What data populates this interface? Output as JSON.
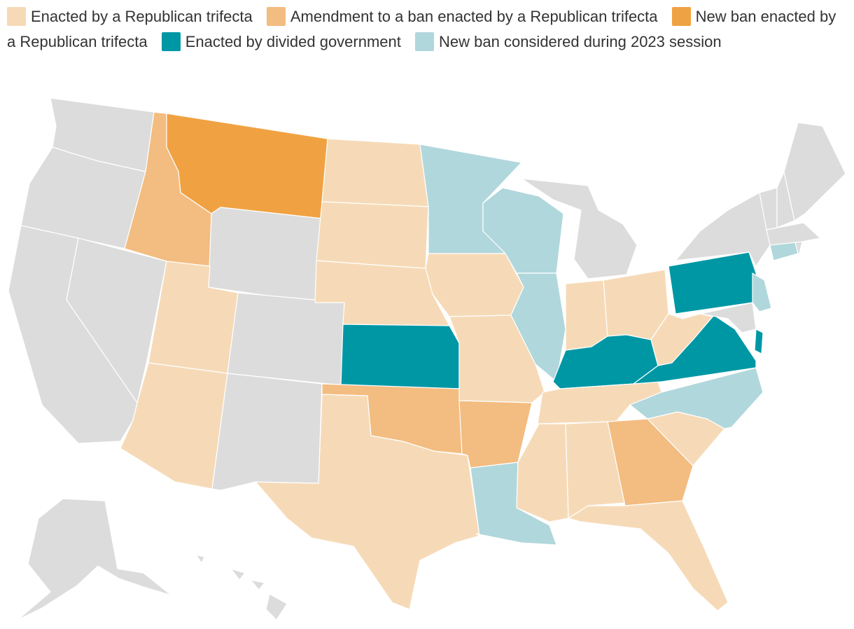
{
  "colors": {
    "enacted_trifecta": "#f6dab7",
    "amendment_trifecta": "#f3bc80",
    "new_ban_trifecta": "#f0a242",
    "divided_government": "#0097a5",
    "considered_2023": "#b0d7dc",
    "no_data": "#dcdcdc"
  },
  "legend": [
    {
      "key": "enacted_trifecta",
      "label": "Enacted by a Republican trifecta"
    },
    {
      "key": "amendment_trifecta",
      "label": "Amendment to a ban enacted by a Republican trifecta"
    },
    {
      "key": "new_ban_trifecta",
      "label": "New ban enacted by a Republican trifecta"
    },
    {
      "key": "divided_government",
      "label": "Enacted by divided government"
    },
    {
      "key": "considered_2023",
      "label": "New ban considered during 2023 session"
    }
  ],
  "states": {
    "WA": "no_data",
    "OR": "no_data",
    "CA": "no_data",
    "NV": "no_data",
    "ID": "amendment_trifecta",
    "MT": "new_ban_trifecta",
    "WY": "no_data",
    "UT": "enacted_trifecta",
    "AZ": "enacted_trifecta",
    "CO": "no_data",
    "NM": "no_data",
    "ND": "enacted_trifecta",
    "SD": "enacted_trifecta",
    "NE": "enacted_trifecta",
    "KS": "divided_government",
    "OK": "amendment_trifecta",
    "TX": "enacted_trifecta",
    "MN": "considered_2023",
    "IA": "enacted_trifecta",
    "MO": "enacted_trifecta",
    "AR": "amendment_trifecta",
    "LA": "considered_2023",
    "WI": "considered_2023",
    "IL": "considered_2023",
    "MI": "no_data",
    "IN": "enacted_trifecta",
    "OH": "enacted_trifecta",
    "KY": "divided_government",
    "TN": "enacted_trifecta",
    "MS": "enacted_trifecta",
    "AL": "enacted_trifecta",
    "GA": "amendment_trifecta",
    "FL": "enacted_trifecta",
    "SC": "enacted_trifecta",
    "NC": "considered_2023",
    "VA": "divided_government",
    "WV": "enacted_trifecta",
    "PA": "divided_government",
    "NY": "no_data",
    "NJ": "considered_2023",
    "DE": "divided_government",
    "MD": "no_data",
    "CT": "considered_2023",
    "RI": "no_data",
    "MA": "no_data",
    "VT": "no_data",
    "NH": "no_data",
    "ME": "no_data",
    "AK": "no_data",
    "HI": "no_data"
  }
}
